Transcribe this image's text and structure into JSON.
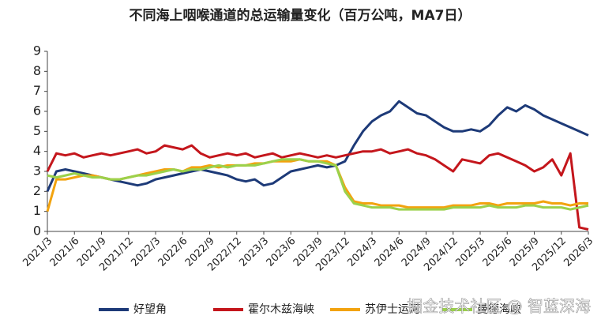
{
  "chart_data": {
    "type": "line",
    "title": "不同海上咽喉通道的总运输量变化（百万公吨，MA7日）",
    "x": [
      "2021/3",
      "2021/4",
      "2021/5",
      "2021/6",
      "2021/7",
      "2021/8",
      "2021/9",
      "2021/10",
      "2021/11",
      "2021/12",
      "2022/1",
      "2022/2",
      "2022/3",
      "2022/4",
      "2022/5",
      "2022/6",
      "2022/7",
      "2022/8",
      "2022/9",
      "2022/10",
      "2022/11",
      "2022/12",
      "2023/1",
      "2023/2",
      "2023/3",
      "2023/4",
      "2023/5",
      "2023/6",
      "2023/7",
      "2023/8",
      "2023/9",
      "2023/10",
      "2023/11",
      "2023/12",
      "2024/1",
      "2024/2",
      "2024/3",
      "2024/4",
      "2024/5",
      "2024/6",
      "2024/7",
      "2024/8",
      "2024/9",
      "2024/10",
      "2024/11",
      "2024/12",
      "2025/1",
      "2025/2",
      "2025/3",
      "2025/4",
      "2025/5",
      "2025/6",
      "2025/7",
      "2025/8",
      "2025/9",
      "2025/10",
      "2025/11",
      "2025/12",
      "2026/1",
      "2026/2",
      "2026/3"
    ],
    "xticks": [
      "2021/3",
      "2021/6",
      "2021/9",
      "2021/12",
      "2022/3",
      "2022/6",
      "2022/9",
      "2022/12",
      "2023/3",
      "2023/6",
      "2023/9",
      "2023/12",
      "2024/3",
      "2024/6",
      "2024/9",
      "2024/12",
      "2025/3",
      "2025/6",
      "2025/9",
      "2025/12",
      "2026/3"
    ],
    "ylim": [
      0,
      9
    ],
    "yticks": [
      0,
      1,
      2,
      3,
      4,
      5,
      6,
      7,
      8,
      9
    ],
    "series": [
      {
        "name": "好望角",
        "color": "#1d3a78",
        "values": [
          2.0,
          3.0,
          3.1,
          3.0,
          2.9,
          2.8,
          2.7,
          2.6,
          2.5,
          2.4,
          2.3,
          2.4,
          2.6,
          2.7,
          2.8,
          2.9,
          3.0,
          3.1,
          3.0,
          2.9,
          2.8,
          2.6,
          2.5,
          2.6,
          2.3,
          2.4,
          2.7,
          3.0,
          3.1,
          3.2,
          3.3,
          3.2,
          3.3,
          3.5,
          4.3,
          5.0,
          5.5,
          5.8,
          6.0,
          6.5,
          6.2,
          5.9,
          5.8,
          5.5,
          5.2,
          5.0,
          5.0,
          5.1,
          5.0,
          5.3,
          5.8,
          6.2,
          6.0,
          6.3,
          6.1,
          5.8,
          5.6,
          5.4,
          5.2,
          5.0,
          4.8
        ]
      },
      {
        "name": "霍尔木兹海峡",
        "color": "#c4161c",
        "values": [
          3.0,
          3.9,
          3.8,
          3.9,
          3.7,
          3.8,
          3.9,
          3.8,
          3.9,
          4.0,
          4.1,
          3.9,
          4.0,
          4.3,
          4.2,
          4.1,
          4.3,
          3.9,
          3.7,
          3.8,
          3.9,
          3.8,
          3.9,
          3.7,
          3.8,
          3.9,
          3.7,
          3.8,
          3.9,
          3.8,
          3.7,
          3.8,
          3.7,
          3.8,
          3.9,
          4.0,
          4.0,
          4.1,
          3.9,
          4.0,
          4.1,
          3.9,
          3.8,
          3.6,
          3.3,
          3.0,
          3.6,
          3.5,
          3.4,
          3.8,
          3.9,
          3.7,
          3.5,
          3.3,
          3.0,
          3.2,
          3.6,
          2.8,
          3.9,
          0.2,
          0.1
        ]
      },
      {
        "name": "苏伊士运河",
        "color": "#f2a30f",
        "values": [
          1.0,
          2.6,
          2.6,
          2.7,
          2.8,
          2.8,
          2.7,
          2.6,
          2.6,
          2.7,
          2.8,
          2.9,
          3.0,
          3.1,
          3.1,
          3.0,
          3.2,
          3.2,
          3.3,
          3.2,
          3.3,
          3.3,
          3.3,
          3.4,
          3.4,
          3.5,
          3.5,
          3.5,
          3.6,
          3.5,
          3.5,
          3.5,
          3.3,
          2.2,
          1.5,
          1.4,
          1.4,
          1.3,
          1.3,
          1.3,
          1.2,
          1.2,
          1.2,
          1.2,
          1.2,
          1.3,
          1.3,
          1.3,
          1.4,
          1.4,
          1.3,
          1.4,
          1.4,
          1.4,
          1.4,
          1.5,
          1.4,
          1.4,
          1.3,
          1.4,
          1.4
        ]
      },
      {
        "name": "曼德海峡",
        "color": "#9bd14b",
        "values": [
          2.8,
          2.7,
          2.8,
          2.9,
          2.8,
          2.7,
          2.7,
          2.6,
          2.6,
          2.7,
          2.8,
          2.8,
          2.9,
          3.0,
          3.1,
          3.0,
          3.1,
          3.1,
          3.2,
          3.3,
          3.2,
          3.3,
          3.3,
          3.3,
          3.4,
          3.5,
          3.6,
          3.6,
          3.6,
          3.5,
          3.5,
          3.4,
          3.3,
          2.0,
          1.4,
          1.3,
          1.2,
          1.2,
          1.2,
          1.1,
          1.1,
          1.1,
          1.1,
          1.1,
          1.1,
          1.2,
          1.2,
          1.2,
          1.2,
          1.3,
          1.2,
          1.2,
          1.2,
          1.3,
          1.3,
          1.2,
          1.2,
          1.2,
          1.1,
          1.2,
          1.3
        ]
      }
    ],
    "watermark": "掘金技术社区 @ 智蓝深海"
  }
}
